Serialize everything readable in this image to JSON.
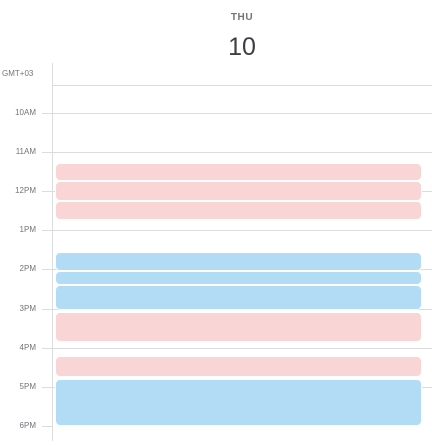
{
  "day": {
    "weekday": "THU",
    "date": "10"
  },
  "timezone": "GMT+03",
  "hours": [
    "10AM",
    "11AM",
    "12PM",
    "1PM",
    "2PM",
    "3PM",
    "4PM",
    "5PM",
    "6PM"
  ],
  "colors": {
    "pink": "#f9d6d5",
    "blue": "#b2dcf5"
  },
  "events": [
    {
      "color": "pink",
      "start_hour": 11.3,
      "end_hour": 11.75
    },
    {
      "color": "pink",
      "start_hour": 11.75,
      "end_hour": 12.25
    },
    {
      "color": "pink",
      "start_hour": 12.25,
      "end_hour": 12.75
    },
    {
      "color": "blue",
      "start_hour": 13.55,
      "end_hour": 14.05
    },
    {
      "color": "blue",
      "start_hour": 14.05,
      "end_hour": 14.4
    },
    {
      "color": "blue",
      "start_hour": 14.4,
      "end_hour": 15.05
    },
    {
      "color": "pink",
      "start_hour": 15.1,
      "end_hour": 15.85
    },
    {
      "color": "pink",
      "start_hour": 16.2,
      "end_hour": 16.75
    },
    {
      "color": "blue",
      "start_hour": 16.8,
      "end_hour": 18.0
    }
  ]
}
